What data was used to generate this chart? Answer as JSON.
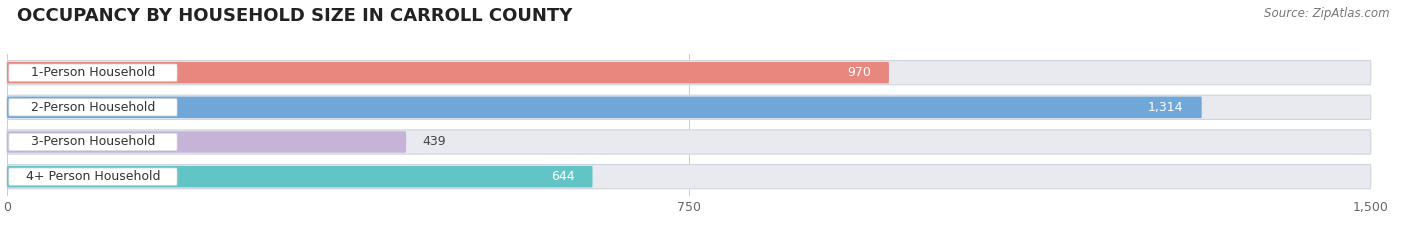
{
  "title": "OCCUPANCY BY HOUSEHOLD SIZE IN CARROLL COUNTY",
  "source": "Source: ZipAtlas.com",
  "categories": [
    "1-Person Household",
    "2-Person Household",
    "3-Person Household",
    "4+ Person Household"
  ],
  "values": [
    970,
    1314,
    439,
    644
  ],
  "colors": [
    "#E8877E",
    "#6FA8D8",
    "#C5B4D8",
    "#62C4C5"
  ],
  "xlim": [
    0,
    1500
  ],
  "xticks": [
    0,
    750,
    1500
  ],
  "bar_height": 0.62,
  "background_color": "#FFFFFF",
  "bar_bg_color": "#E8EAF0",
  "label_bg_color": "#FFFFFF",
  "title_fontsize": 13,
  "source_fontsize": 8.5,
  "tick_fontsize": 9,
  "bar_label_fontsize": 9,
  "category_fontsize": 9,
  "value_label_inside_1": true,
  "value_label_inside_2": true,
  "value_label_inside_3": false,
  "value_label_inside_4": false
}
